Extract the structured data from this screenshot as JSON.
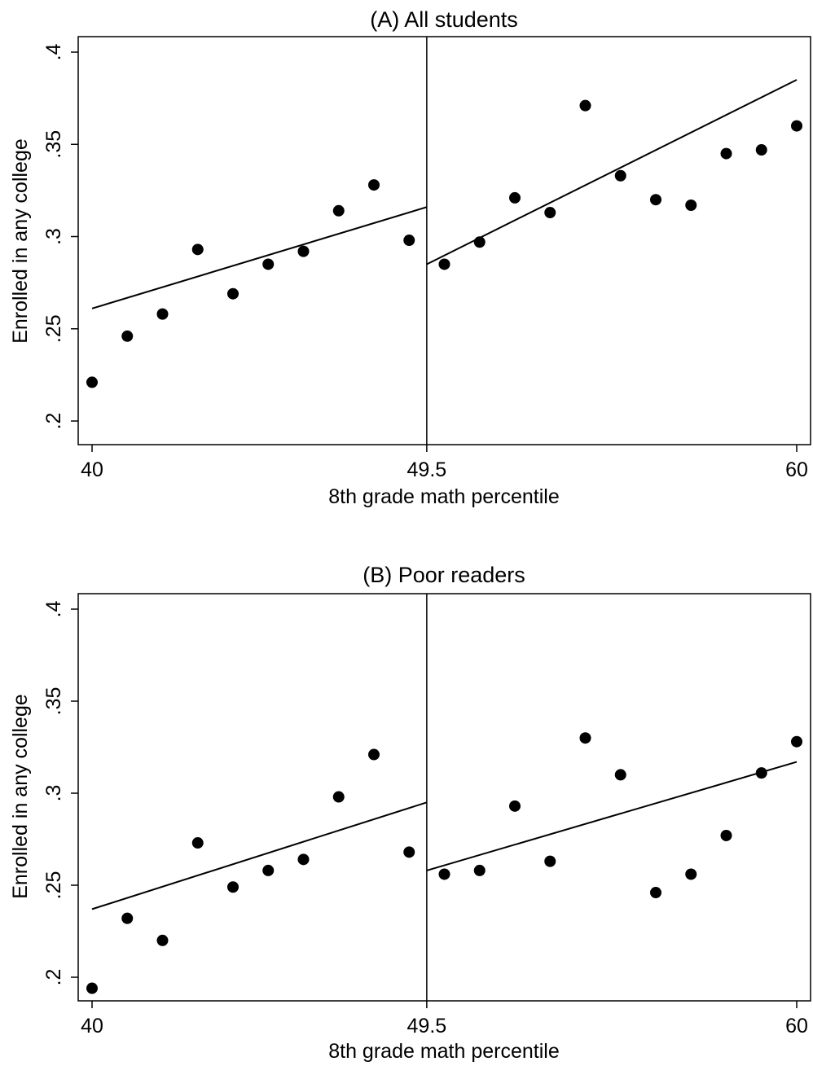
{
  "chart_data": [
    {
      "type": "scatter",
      "title": "(A) All students",
      "xlabel": "8th grade math percentile",
      "ylabel": "Enrolled in any college",
      "xlim": [
        40,
        60
      ],
      "ylim": [
        0.2,
        0.4
      ],
      "x_ticks": [
        {
          "value": 40,
          "label": "40"
        },
        {
          "value": 49.5,
          "label": "49.5"
        },
        {
          "value": 60,
          "label": "60"
        }
      ],
      "y_ticks": [
        {
          "value": 0.2,
          "label": ".2"
        },
        {
          "value": 0.25,
          "label": ".25"
        },
        {
          "value": 0.3,
          "label": ".3"
        },
        {
          "value": 0.35,
          "label": ".35"
        },
        {
          "value": 0.4,
          "label": ".4"
        }
      ],
      "cutoff": 49.5,
      "grid": false,
      "points": {
        "x": [
          40,
          41,
          42,
          43,
          44,
          45,
          46,
          47,
          48,
          49,
          50,
          51,
          52,
          53,
          54,
          55,
          56,
          57,
          58,
          59,
          60
        ],
        "y": [
          0.221,
          0.246,
          0.258,
          0.293,
          0.269,
          0.285,
          0.292,
          0.314,
          0.328,
          0.298,
          0.285,
          0.297,
          0.321,
          0.313,
          0.371,
          0.333,
          0.32,
          0.317,
          0.345,
          0.347,
          0.36
        ]
      },
      "fit_lines": [
        {
          "x": [
            40,
            49.5
          ],
          "y": [
            0.261,
            0.316
          ]
        },
        {
          "x": [
            49.5,
            60
          ],
          "y": [
            0.285,
            0.385
          ]
        }
      ]
    },
    {
      "type": "scatter",
      "title": "(B) Poor readers",
      "xlabel": "8th grade math percentile",
      "ylabel": "Enrolled in any college",
      "xlim": [
        40,
        60
      ],
      "ylim": [
        0.2,
        0.4
      ],
      "x_ticks": [
        {
          "value": 40,
          "label": "40"
        },
        {
          "value": 49.5,
          "label": "49.5"
        },
        {
          "value": 60,
          "label": "60"
        }
      ],
      "y_ticks": [
        {
          "value": 0.2,
          "label": ".2"
        },
        {
          "value": 0.25,
          "label": ".25"
        },
        {
          "value": 0.3,
          "label": ".3"
        },
        {
          "value": 0.35,
          "label": ".35"
        },
        {
          "value": 0.4,
          "label": ".4"
        }
      ],
      "cutoff": 49.5,
      "grid": false,
      "points": {
        "x": [
          40,
          41,
          42,
          43,
          44,
          45,
          46,
          47,
          48,
          49,
          50,
          51,
          52,
          53,
          54,
          55,
          56,
          57,
          58,
          59,
          60
        ],
        "y": [
          0.194,
          0.232,
          0.22,
          0.273,
          0.249,
          0.258,
          0.264,
          0.298,
          0.321,
          0.268,
          0.256,
          0.258,
          0.293,
          0.263,
          0.33,
          0.31,
          0.246,
          0.256,
          0.277,
          0.311,
          0.328
        ]
      },
      "fit_lines": [
        {
          "x": [
            40,
            49.5
          ],
          "y": [
            0.237,
            0.295
          ]
        },
        {
          "x": [
            49.5,
            60
          ],
          "y": [
            0.258,
            0.317
          ]
        }
      ]
    }
  ]
}
